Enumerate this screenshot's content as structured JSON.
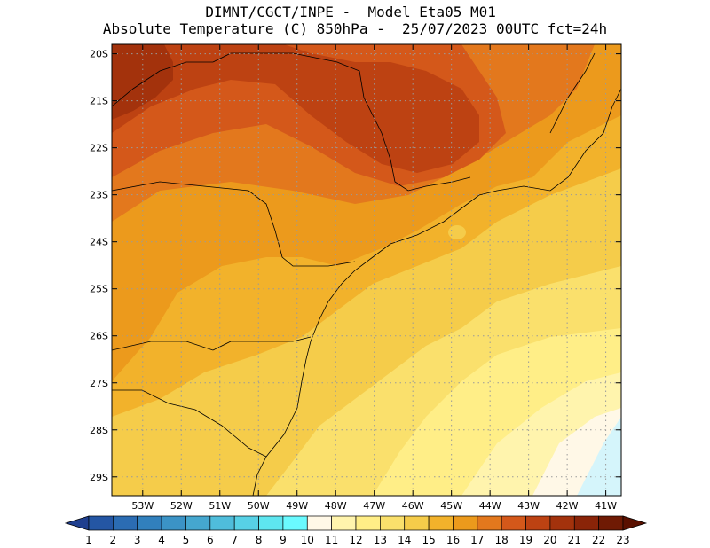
{
  "header": {
    "line1": "DIMNT/CGCT/INPE -  Model Eta05_M01_",
    "line2": "Absolute Temperature (C) 850hPa -  25/07/2023 00UTC fct=24h"
  },
  "map": {
    "lon_range": [
      -53.8,
      -40.6
    ],
    "lat_range": [
      -29.4,
      -19.8
    ],
    "lat_ticks": [
      "20S",
      "21S",
      "22S",
      "23S",
      "24S",
      "25S",
      "26S",
      "27S",
      "28S",
      "29S"
    ],
    "lat_values": [
      -20,
      -21,
      -22,
      -23,
      -24,
      -25,
      -26,
      -27,
      -28,
      -29
    ],
    "lon_ticks": [
      "53W",
      "52W",
      "51W",
      "50W",
      "49W",
      "48W",
      "47W",
      "46W",
      "45W",
      "44W",
      "43W",
      "42W",
      "41W"
    ],
    "lon_values": [
      -53,
      -52,
      -51,
      -50,
      -49,
      -48,
      -47,
      -46,
      -45,
      -44,
      -43,
      -42,
      -41
    ],
    "grid": true
  },
  "colorbar": {
    "labels": [
      "1",
      "2",
      "3",
      "4",
      "5",
      "6",
      "7",
      "8",
      "9",
      "10",
      "11",
      "12",
      "13",
      "14",
      "15",
      "16",
      "17",
      "18",
      "19",
      "20",
      "21",
      "22",
      "23"
    ],
    "colors": [
      "#1f3f8f",
      "#2456a4",
      "#2b6cb3",
      "#3180bd",
      "#3b93c6",
      "#45a7cf",
      "#4fbddb",
      "#57d1e6",
      "#5ee6f0",
      "#6afaff",
      "#fff8e7",
      "#fff4ad",
      "#ffee87",
      "#fae06c",
      "#f5cc4a",
      "#f2b22b",
      "#ec9a1c",
      "#e3781d",
      "#d4581a",
      "#bd4212",
      "#a3320c",
      "#8a2408",
      "#6f1a04",
      "#5a1000"
    ]
  }
}
